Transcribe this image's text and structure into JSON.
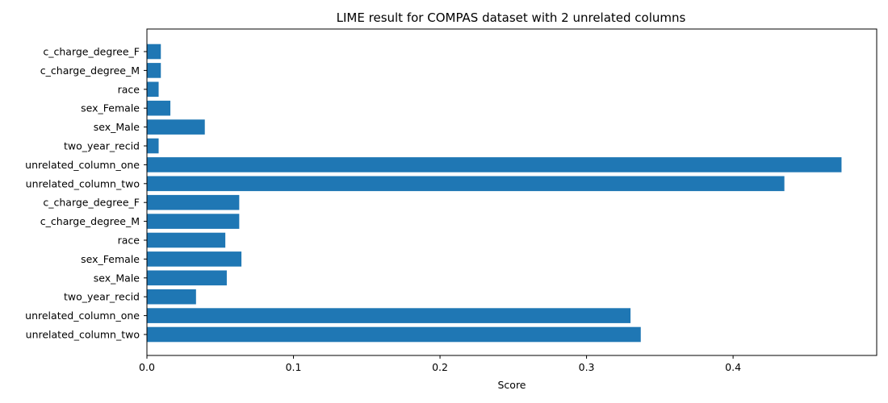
{
  "chart_data": {
    "type": "bar",
    "orientation": "horizontal",
    "title": "LIME result for COMPAS dataset with 2 unrelated columns",
    "xlabel": "Score",
    "ylabel": "",
    "xlim": [
      0.0,
      0.498
    ],
    "xticks": [
      "0.0",
      "0.1",
      "0.2",
      "0.3",
      "0.4"
    ],
    "xtick_values": [
      0.0,
      0.1,
      0.2,
      0.3,
      0.4
    ],
    "bar_color": "#1f77b4",
    "grid": false,
    "categories": [
      "c_charge_degree_F",
      "c_charge_degree_M",
      "race",
      "sex_Female",
      "sex_Male",
      "two_year_recid",
      "unrelated_column_one",
      "unrelated_column_two",
      "c_charge_degree_F",
      "c_charge_degree_M",
      "race",
      "sex_Female",
      "sex_Male",
      "two_year_recid",
      "unrelated_column_one",
      "unrelated_column_two"
    ],
    "values": [
      0.0095,
      0.0095,
      0.008,
      0.016,
      0.0395,
      0.008,
      0.474,
      0.435,
      0.063,
      0.063,
      0.0535,
      0.0645,
      0.0545,
      0.0335,
      0.33,
      0.337
    ]
  }
}
